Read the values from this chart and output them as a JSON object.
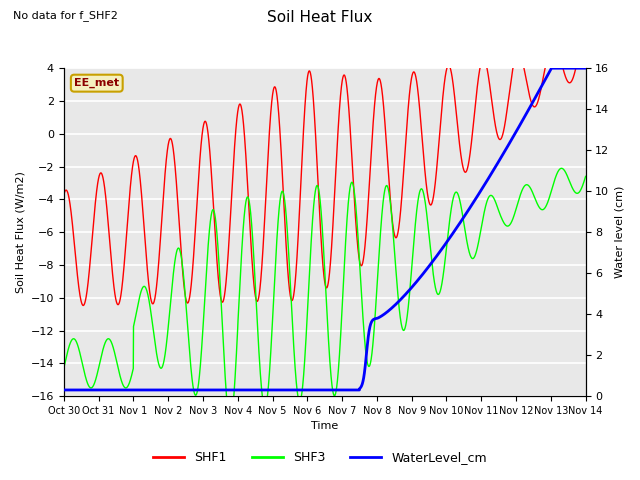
{
  "title": "Soil Heat Flux",
  "note": "No data for f_SHF2",
  "ylabel_left": "Soil Heat Flux (W/m2)",
  "ylabel_right": "Water level (cm)",
  "xlabel": "Time",
  "box_label": "EE_met",
  "ylim_left": [
    -16,
    4
  ],
  "ylim_right": [
    0,
    16
  ],
  "yticks_left": [
    -16,
    -14,
    -12,
    -10,
    -8,
    -6,
    -4,
    -2,
    0,
    2,
    4
  ],
  "yticks_right": [
    0,
    2,
    4,
    6,
    8,
    10,
    12,
    14,
    16
  ],
  "bg_color": "#e8e8e8",
  "grid_color": "white",
  "legend_items": [
    {
      "label": "SHF1",
      "color": "red"
    },
    {
      "label": "SHF3",
      "color": "green"
    },
    {
      "label": "WaterLevel_cm",
      "color": "blue"
    }
  ],
  "xtick_labels": [
    "Oct 30",
    "Oct 31",
    "Nov 1",
    "Nov 2",
    "Nov 3",
    "Nov 4",
    "Nov 5",
    "Nov 6",
    "Nov 7",
    "Nov 8",
    "Nov 9",
    "Nov 10",
    "Nov 11",
    "Nov 12",
    "Nov 13",
    "Nov 14"
  ],
  "num_days": 15
}
